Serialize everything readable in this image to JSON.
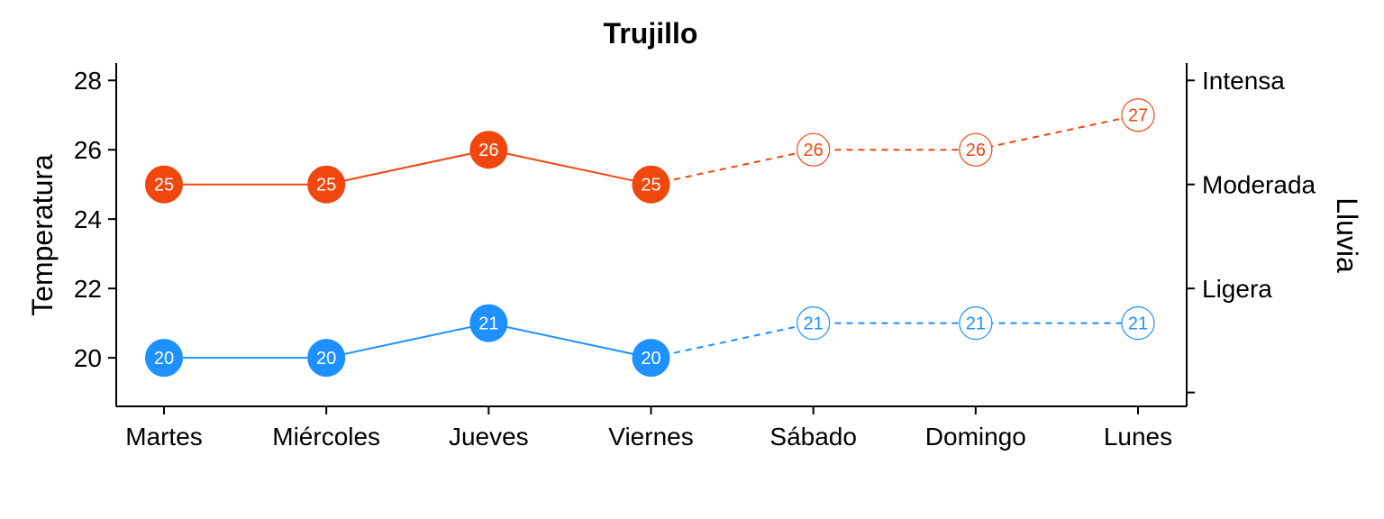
{
  "chart_data": {
    "type": "line",
    "title": "Trujillo",
    "ylabel": "Temperatura",
    "y2label": "Lluvia",
    "categories": [
      "Martes",
      "Miércoles",
      "Jueves",
      "Viernes",
      "Sábado",
      "Domingo",
      "Lunes"
    ],
    "ylim": [
      18.6,
      28.5
    ],
    "yticks": [
      20,
      22,
      24,
      26,
      28
    ],
    "y2_ticks": [
      {
        "value": 19,
        "label": ""
      },
      {
        "value": 22,
        "label": "Ligera"
      },
      {
        "value": 25,
        "label": "Moderada"
      },
      {
        "value": 28,
        "label": "Intensa"
      }
    ],
    "observed_count": 4,
    "series": [
      {
        "values": [
          25,
          25,
          26,
          25,
          26,
          26,
          27
        ],
        "color": "#F0470F"
      },
      {
        "values": [
          20,
          20,
          21,
          20,
          21,
          21,
          21
        ],
        "color": "#1E90FF"
      }
    ],
    "grid": false
  }
}
